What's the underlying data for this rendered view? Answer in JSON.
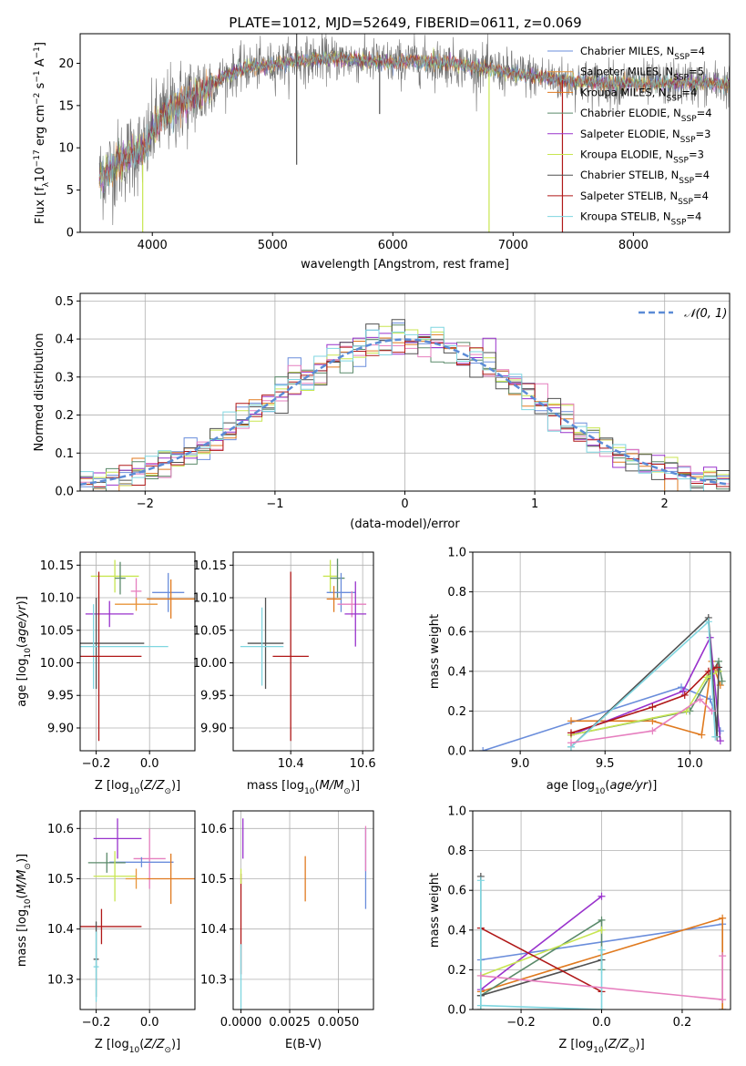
{
  "figure_title": "PLATE=1012, MJD=52649, FIBERID=0611, z=0.069",
  "colors": {
    "chabrier_miles": "#6a8ddb",
    "salpeter_miles": "#e8943a",
    "kroupa_miles": "#e07a1f",
    "chabrier_elodie": "#5a8a6a",
    "salpeter_elodie": "#9932cc",
    "kroupa_elodie": "#c8e650",
    "chabrier_stelib": "#505050",
    "salpeter_stelib": "#b01818",
    "kroupa_stelib": "#7fd6e0",
    "pink": "#e67fbf",
    "gaussian": "#5b8bd6",
    "grid": "#b0b0b0"
  },
  "chart_data": [
    {
      "id": "spectrum",
      "type": "line",
      "xlabel": "wavelength [Angstrom, rest frame]",
      "ylabel": "Flux [f_λ 10^-17 erg cm^-2 s^-1 A^-1]",
      "xlim": [
        3400,
        8800
      ],
      "ylim": [
        0,
        23.5
      ],
      "xticks": [
        4000,
        5000,
        6000,
        7000,
        8000
      ],
      "yticks": [
        0,
        5,
        10,
        15,
        20
      ],
      "grid": false,
      "legend_position": "right",
      "legend": [
        {
          "label": "Chabrier MILES, N_SSP=4",
          "color": "#6a8ddb"
        },
        {
          "label": "Salpeter MILES, N_SSP=5",
          "color": "#e8943a"
        },
        {
          "label": "Kroupa MILES, N_SSP=4",
          "color": "#e07a1f"
        },
        {
          "label": "Chabrier ELODIE, N_SSP=4",
          "color": "#5a8a6a"
        },
        {
          "label": "Salpeter ELODIE, N_SSP=3",
          "color": "#9932cc"
        },
        {
          "label": "Kroupa ELODIE, N_SSP=3",
          "color": "#c8e650"
        },
        {
          "label": "Chabrier STELIB, N_SSP=4",
          "color": "#505050"
        },
        {
          "label": "Salpeter STELIB, N_SSP=4",
          "color": "#b01818"
        },
        {
          "label": "Kroupa STELIB, N_SSP=4",
          "color": "#7fd6e0"
        }
      ],
      "continuum": {
        "x": [
          3560,
          3700,
          3850,
          3950,
          4000,
          4100,
          4250,
          4400,
          4600,
          4800,
          5000,
          5200,
          5500,
          5800,
          6000,
          6200,
          6500,
          6800,
          7000,
          7200,
          7400,
          7600,
          7800,
          8000,
          8200,
          8400,
          8600,
          8800
        ],
        "y": [
          6.5,
          8.0,
          9.5,
          10.0,
          12.0,
          14.0,
          15.5,
          16.5,
          18.5,
          19.5,
          19.8,
          20.3,
          20.6,
          20.3,
          20.0,
          20.3,
          20.0,
          19.3,
          18.8,
          18.5,
          18.0,
          17.8,
          17.6,
          17.6,
          17.6,
          17.7,
          17.6,
          17.5
        ]
      },
      "vertical_spikes": [
        {
          "x": 3920,
          "y0": 0,
          "y1": 8,
          "color": "#c8e650"
        },
        {
          "x": 5200,
          "y0": 8,
          "y1": 23.5,
          "color": "#505050"
        },
        {
          "x": 5890,
          "y0": 14,
          "y1": 21,
          "color": "#505050"
        },
        {
          "x": 6800,
          "y0": 0,
          "y1": 19,
          "color": "#c8e650"
        },
        {
          "x": 7410,
          "y0": 0,
          "y1": 18,
          "color": "#b01818"
        }
      ]
    },
    {
      "id": "residuals",
      "type": "histogram",
      "xlabel": "(data-model)/error",
      "ylabel": "Normed distribution",
      "xlim": [
        -2.5,
        2.5
      ],
      "ylim": [
        0,
        0.52
      ],
      "xticks": [
        -2,
        -1,
        0,
        1,
        2
      ],
      "yticks": [
        0.0,
        0.1,
        0.2,
        0.3,
        0.4,
        0.5
      ],
      "grid": true,
      "legend_position": "upper right",
      "legend": [
        {
          "label": "N(0,1)",
          "style": "dashed",
          "color": "#5b8bd6"
        }
      ],
      "bin_width": 0.1,
      "histogram_count": 9,
      "gaussian": {
        "mu": 0,
        "sigma": 1
      }
    },
    {
      "id": "age_vs_Z",
      "type": "errorbar",
      "xlabel": "Z [log10(Z/Z_sun)]",
      "ylabel": "age [log10(age/yr)]",
      "xlim": [
        -0.26,
        0.17
      ],
      "ylim": [
        9.865,
        10.17
      ],
      "xticks": [
        -0.2,
        0.0
      ],
      "yticks": [
        9.9,
        9.95,
        10.0,
        10.05,
        10.1,
        10.15
      ],
      "grid": true,
      "points": [
        {
          "x": -0.13,
          "xerr": 0.09,
          "y": 10.133,
          "yerr": 0.025,
          "color": "#c8e650"
        },
        {
          "x": -0.11,
          "xerr": 0.02,
          "y": 10.13,
          "yerr": 0.025,
          "color": "#5a8a6a"
        },
        {
          "x": -0.05,
          "xerr": 0.02,
          "y": 10.11,
          "yerr": 0.02,
          "color": "#e67fbf"
        },
        {
          "x": -0.15,
          "xerr": 0.09,
          "y": 10.075,
          "yerr": 0.02,
          "color": "#9932cc"
        },
        {
          "x": 0.07,
          "xerr": 0.06,
          "y": 10.108,
          "yerr": 0.03,
          "color": "#6a8ddb"
        },
        {
          "x": 0.08,
          "xerr": 0.09,
          "y": 10.098,
          "yerr": 0.03,
          "color": "#e07a1f"
        },
        {
          "x": -0.05,
          "xerr": 0.08,
          "y": 10.09,
          "yerr": 0.01,
          "color": "#e8943a"
        },
        {
          "x": -0.2,
          "xerr": 0.18,
          "y": 10.03,
          "yerr": 0.07,
          "color": "#505050"
        },
        {
          "x": -0.21,
          "xerr": 0.28,
          "y": 10.025,
          "yerr": 0.065,
          "color": "#7fd6e0"
        },
        {
          "x": -0.19,
          "xerr": 0.16,
          "y": 10.01,
          "yerr": 0.13,
          "color": "#b01818"
        }
      ]
    },
    {
      "id": "age_vs_mass",
      "type": "errorbar",
      "xlabel": "mass [log10(M/M_sun)]",
      "ylabel": "",
      "xlim": [
        10.24,
        10.63
      ],
      "ylim": [
        9.865,
        10.17
      ],
      "xticks": [
        10.4,
        10.6
      ],
      "yticks": [
        9.9,
        9.95,
        10.0,
        10.05,
        10.1,
        10.15
      ],
      "grid": true,
      "points": [
        {
          "x": 10.51,
          "xerr": 0.02,
          "y": 10.133,
          "yerr": 0.025,
          "color": "#c8e650"
        },
        {
          "x": 10.53,
          "xerr": 0.02,
          "y": 10.13,
          "yerr": 0.03,
          "color": "#5a8a6a"
        },
        {
          "x": 10.54,
          "xerr": 0.04,
          "y": 10.108,
          "yerr": 0.03,
          "color": "#6a8ddb"
        },
        {
          "x": 10.57,
          "xerr": 0.04,
          "y": 10.09,
          "yerr": 0.02,
          "color": "#e67fbf"
        },
        {
          "x": 10.58,
          "xerr": 0.03,
          "y": 10.075,
          "yerr": 0.05,
          "color": "#9932cc"
        },
        {
          "x": 10.52,
          "xerr": 0.02,
          "y": 10.098,
          "yerr": 0.02,
          "color": "#e07a1f"
        },
        {
          "x": 10.33,
          "xerr": 0.05,
          "y": 10.03,
          "yerr": 0.07,
          "color": "#505050"
        },
        {
          "x": 10.32,
          "xerr": 0.06,
          "y": 10.025,
          "yerr": 0.06,
          "color": "#7fd6e0"
        },
        {
          "x": 10.4,
          "xerr": 0.05,
          "y": 10.01,
          "yerr": 0.13,
          "color": "#b01818"
        }
      ]
    },
    {
      "id": "weight_vs_age",
      "type": "line",
      "xlabel": "age [log10(age/yr)]",
      "ylabel": "mass weight",
      "xlim": [
        8.72,
        10.24
      ],
      "ylim": [
        0,
        1.0
      ],
      "xticks": [
        9.0,
        9.5,
        10.0
      ],
      "yticks": [
        0.0,
        0.2,
        0.4,
        0.6,
        0.8,
        1.0
      ],
      "grid": true,
      "series": [
        {
          "color": "#6a8ddb",
          "x": [
            8.78,
            9.95,
            10.12,
            10.18
          ],
          "y": [
            0.0,
            0.32,
            0.26,
            0.1
          ]
        },
        {
          "color": "#e07a1f",
          "x": [
            9.3,
            9.78,
            10.07,
            10.13,
            10.18
          ],
          "y": [
            0.15,
            0.15,
            0.08,
            0.45,
            0.33
          ]
        },
        {
          "color": "#5a8a6a",
          "x": [
            9.3,
            10.0,
            10.12,
            10.17,
            10.19
          ],
          "y": [
            0.08,
            0.2,
            0.38,
            0.45,
            0.35
          ]
        },
        {
          "color": "#9932cc",
          "x": [
            9.3,
            9.96,
            10.12,
            10.18
          ],
          "y": [
            0.08,
            0.3,
            0.57,
            0.05
          ]
        },
        {
          "color": "#c8e650",
          "x": [
            9.3,
            9.98,
            10.1,
            10.17
          ],
          "y": [
            0.08,
            0.2,
            0.37,
            0.4
          ]
        },
        {
          "color": "#505050",
          "x": [
            9.3,
            10.11,
            10.16,
            10.17
          ],
          "y": [
            0.02,
            0.67,
            0.07,
            0.42
          ]
        },
        {
          "color": "#b01818",
          "x": [
            9.3,
            9.78,
            9.97,
            10.11,
            10.16
          ],
          "y": [
            0.09,
            0.22,
            0.28,
            0.4,
            0.42
          ]
        },
        {
          "color": "#7fd6e0",
          "x": [
            9.3,
            10.11,
            10.15
          ],
          "y": [
            0.02,
            0.65,
            0.07
          ]
        },
        {
          "color": "#e67fbf",
          "x": [
            9.3,
            9.78,
            10.06,
            10.13
          ],
          "y": [
            0.04,
            0.1,
            0.26,
            0.2
          ]
        }
      ]
    },
    {
      "id": "mass_vs_Z",
      "type": "errorbar",
      "xlabel": "Z [log10(Z/Z_sun)]",
      "ylabel": "mass [log10(M/M_sun)]",
      "xlim": [
        -0.26,
        0.17
      ],
      "ylim": [
        10.24,
        10.635
      ],
      "xticks": [
        -0.2,
        0.0
      ],
      "yticks": [
        10.3,
        10.4,
        10.5,
        10.6
      ],
      "grid": true,
      "points": [
        {
          "x": -0.12,
          "xerr": 0.09,
          "y": 10.58,
          "yerr": 0.04,
          "color": "#9932cc"
        },
        {
          "x": 0.0,
          "xerr": 0.06,
          "y": 10.54,
          "yerr": 0.06,
          "color": "#e67fbf"
        },
        {
          "x": -0.03,
          "xerr": 0.12,
          "y": 10.533,
          "yerr": 0.01,
          "color": "#6a8ddb"
        },
        {
          "x": -0.16,
          "xerr": 0.07,
          "y": 10.532,
          "yerr": 0.02,
          "color": "#5a8a6a"
        },
        {
          "x": -0.13,
          "xerr": 0.08,
          "y": 10.505,
          "yerr": 0.05,
          "color": "#c8e650"
        },
        {
          "x": 0.08,
          "xerr": 0.09,
          "y": 10.5,
          "yerr": 0.05,
          "color": "#e07a1f"
        },
        {
          "x": -0.05,
          "xerr": 0.04,
          "y": 10.5,
          "yerr": 0.02,
          "color": "#e8943a"
        },
        {
          "x": -0.18,
          "xerr": 0.15,
          "y": 10.405,
          "yerr": 0.035,
          "color": "#b01818"
        },
        {
          "x": -0.2,
          "xerr": 0.01,
          "y": 10.34,
          "yerr": 0.075,
          "color": "#505050"
        },
        {
          "x": -0.2,
          "xerr": 0.01,
          "y": 10.325,
          "yerr": 0.07,
          "color": "#7fd6e0"
        }
      ]
    },
    {
      "id": "mass_vs_ebv",
      "type": "errorbar",
      "xlabel": "E(B-V)",
      "ylabel": "",
      "xlim": [
        -0.0004,
        0.0068
      ],
      "ylim": [
        10.24,
        10.635
      ],
      "xticks": [
        0.0,
        0.0025,
        0.005
      ],
      "xticklabels": [
        "0.0000",
        "0.0025",
        "0.0050"
      ],
      "yticks": [
        10.3,
        10.4,
        10.5,
        10.6
      ],
      "grid": true,
      "points": [
        {
          "x": 0.0001,
          "y": 10.58,
          "yerr": 0.04,
          "color": "#9932cc"
        },
        {
          "x": 0.0,
          "y": 10.41,
          "yerr": 0.1,
          "color": "#b01818"
        },
        {
          "x": 0.0,
          "y": 10.505,
          "yerr": 0.015,
          "color": "#c8e650"
        },
        {
          "x": 0.0,
          "y": 10.3,
          "yerr": 0.07,
          "color": "#7fd6e0"
        },
        {
          "x": 0.0033,
          "y": 10.5,
          "yerr": 0.045,
          "color": "#e07a1f"
        },
        {
          "x": 0.0064,
          "y": 10.52,
          "yerr": 0.08,
          "color": "#6a8ddb"
        },
        {
          "x": 0.0064,
          "y": 10.56,
          "yerr": 0.045,
          "color": "#e67fbf"
        }
      ]
    },
    {
      "id": "weight_vs_Z",
      "type": "line",
      "xlabel": "Z [log10(Z/Z_sun)]",
      "ylabel": "mass weight",
      "xlim": [
        -0.32,
        0.32
      ],
      "ylim": [
        0,
        1.0
      ],
      "xticks": [
        -0.2,
        0.0,
        0.2
      ],
      "yticks": [
        0.0,
        0.2,
        0.4,
        0.6,
        0.8,
        1.0
      ],
      "grid": true,
      "series": [
        {
          "color": "#6a8ddb",
          "x": [
            -0.3,
            0.3,
            0.3
          ],
          "y": [
            0.25,
            0.43,
            0.0
          ]
        },
        {
          "color": "#e07a1f",
          "x": [
            -0.3,
            0.3,
            0.3
          ],
          "y": [
            0.09,
            0.46,
            0.0
          ]
        },
        {
          "color": "#5a8a6a",
          "x": [
            -0.3,
            -0.3,
            0.0,
            0.0
          ],
          "y": [
            0.0,
            0.07,
            0.45,
            0.2
          ]
        },
        {
          "color": "#9932cc",
          "x": [
            -0.3,
            0.0
          ],
          "y": [
            0.1,
            0.57
          ]
        },
        {
          "color": "#c8e650",
          "x": [
            -0.3,
            0.0
          ],
          "y": [
            0.17,
            0.4
          ]
        },
        {
          "color": "#505050",
          "x": [
            -0.3,
            -0.3,
            0.0
          ],
          "y": [
            0.67,
            0.07,
            0.25
          ]
        },
        {
          "color": "#b01818",
          "x": [
            -0.3,
            0.0
          ],
          "y": [
            0.41,
            0.09
          ]
        },
        {
          "color": "#7fd6e0",
          "x": [
            -0.3,
            -0.3,
            0.0,
            0.0
          ],
          "y": [
            0.65,
            0.02,
            0.0,
            0.3
          ]
        },
        {
          "color": "#e67fbf",
          "x": [
            -0.3,
            0.3,
            0.3
          ],
          "y": [
            0.17,
            0.05,
            0.27
          ]
        }
      ]
    }
  ]
}
